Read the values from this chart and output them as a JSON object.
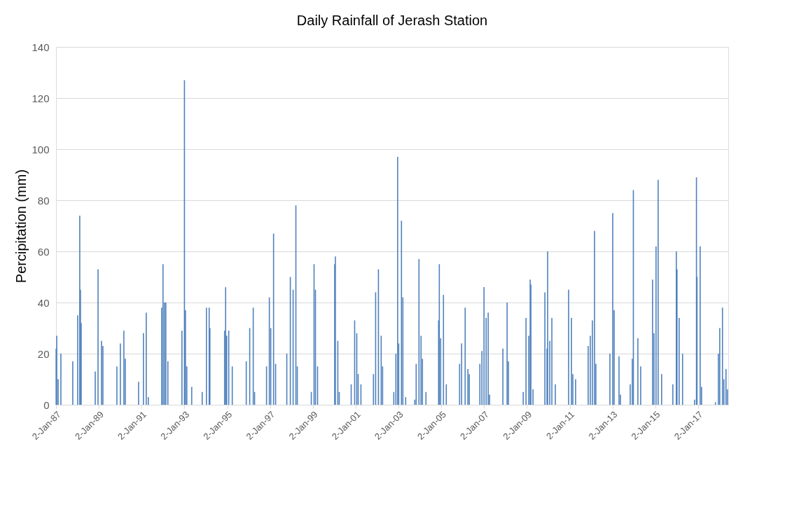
{
  "chart_data": {
    "type": "bar",
    "title": "Daily Rainfall  of Jerash Station",
    "ylabel": "Percipitation (mm)",
    "x": [
      "1987-01-03",
      "1987-01-13",
      "1987-02-06",
      "1987-03-25",
      "1987-10-14",
      "1988-01-06",
      "1988-02-10",
      "1988-02-22",
      "1988-03-05",
      "1988-10-31",
      "1988-12-18",
      "1989-02-15",
      "1989-03-11",
      "1989-11-05",
      "1990-01-03",
      "1990-03-04",
      "1990-03-28",
      "1990-11-10",
      "1991-02-01",
      "1991-03-21",
      "1991-04-25",
      "1991-12-08",
      "1992-01-01",
      "1992-01-25",
      "1992-02-18",
      "1992-03-24",
      "1992-11-19",
      "1993-01-01",
      "1993-01-18",
      "1993-02-10",
      "1993-05-05",
      "1993-10-31",
      "1994-01-11",
      "1994-02-27",
      "1994-03-11",
      "1994-11-17",
      "1994-12-05",
      "1994-12-22",
      "1995-01-27",
      "1995-03-28",
      "1995-11-22",
      "1996-01-20",
      "1996-03-20",
      "1996-04-12",
      "1996-11-02",
      "1996-12-20",
      "1997-01-13",
      "1997-03-02",
      "1997-04-06",
      "1997-10-14",
      "1997-12-13",
      "1998-01-30",
      "1998-03-18",
      "1998-04-11",
      "1998-12-06",
      "1999-01-22",
      "1999-02-15",
      "1999-03-23",
      "2000-01-09",
      "2000-01-21",
      "2000-03-03",
      "2000-03-27",
      "2000-10-17",
      "2000-12-15",
      "2001-01-20",
      "2001-02-13",
      "2001-04-01",
      "2001-11-01",
      "2001-12-08",
      "2002-01-25",
      "2002-03-13",
      "2002-04-06",
      "2002-10-14",
      "2002-11-19",
      "2002-12-19",
      "2003-01-06",
      "2003-02-22",
      "2003-03-18",
      "2003-05-05",
      "2003-10-07",
      "2003-10-31",
      "2003-12-18",
      "2004-01-22",
      "2004-02-15",
      "2004-04-15",
      "2004-11-17",
      "2004-11-29",
      "2004-12-22",
      "2005-02-08",
      "2005-03-28",
      "2005-11-10",
      "2005-12-15",
      "2006-02-13",
      "2006-04-01",
      "2006-04-25",
      "2006-10-22",
      "2006-11-26",
      "2007-01-01",
      "2007-02-06",
      "2007-03-13",
      "2007-04-06",
      "2007-11-19",
      "2008-01-30",
      "2008-02-22",
      "2008-10-31",
      "2008-12-18",
      "2009-02-03",
      "2009-02-27",
      "2009-03-11",
      "2009-04-16",
      "2009-11-05",
      "2009-12-11",
      "2009-12-22",
      "2010-01-27",
      "2010-03-04",
      "2010-05-02",
      "2010-12-15",
      "2011-02-01",
      "2011-02-25",
      "2011-04-13",
      "2011-11-14",
      "2011-12-20",
      "2012-01-25",
      "2012-03-01",
      "2012-03-24",
      "2012-11-19",
      "2013-01-06",
      "2013-01-30",
      "2013-04-23",
      "2013-05-17",
      "2013-10-31",
      "2013-12-06",
      "2013-12-24",
      "2014-03-11",
      "2014-04-28",
      "2014-11-17",
      "2014-12-11",
      "2015-01-15",
      "2015-02-20",
      "2015-04-20",
      "2015-10-29",
      "2015-12-27",
      "2016-01-08",
      "2016-02-13",
      "2016-04-12",
      "2016-11-02",
      "2016-12-05",
      "2016-12-14",
      "2017-02-06",
      "2017-03-02",
      "2017-10-25",
      "2017-12-13",
      "2018-01-06",
      "2018-02-22",
      "2018-03-18",
      "2018-04-23",
      "2018-05-17"
    ],
    "series": [
      {
        "color": "#4f81bd",
        "values": [
          22,
          27,
          10,
          20,
          17,
          35,
          74,
          45,
          32,
          13,
          53,
          25,
          23,
          15,
          24,
          29,
          18,
          9,
          28,
          36,
          3,
          38,
          55,
          40,
          40,
          17,
          29,
          127,
          37,
          15,
          7,
          5,
          38,
          38,
          30,
          29,
          46,
          27,
          29,
          15,
          17,
          30,
          38,
          5,
          15,
          42,
          30,
          67,
          16,
          20,
          50,
          45,
          78,
          15,
          5,
          55,
          45,
          15,
          55,
          58,
          25,
          5,
          8,
          33,
          28,
          12,
          8,
          12,
          44,
          53,
          27,
          15,
          5,
          20,
          97,
          24,
          72,
          42,
          3,
          2,
          16,
          57,
          27,
          18,
          5,
          33,
          55,
          26,
          43,
          8,
          16,
          24,
          38,
          14,
          12,
          16,
          21,
          46,
          34,
          36,
          4,
          22,
          40,
          17,
          5,
          34,
          27,
          49,
          47,
          6,
          44,
          22,
          60,
          25,
          34,
          8,
          45,
          34,
          12,
          10,
          23,
          27,
          33,
          68,
          16,
          20,
          75,
          37,
          19,
          4,
          8,
          18,
          84,
          26,
          15,
          49,
          28,
          62,
          88,
          12,
          8,
          60,
          53,
          34,
          20,
          2,
          89,
          50,
          62,
          7,
          1,
          20,
          30,
          38,
          10,
          14,
          6
        ]
      }
    ],
    "xlim": [
      "1987-01-01",
      "2018-06-01"
    ],
    "xticks": [
      {
        "value": "1987-01-02",
        "label": "2-Jan-87"
      },
      {
        "value": "1989-01-02",
        "label": "2-Jan-89"
      },
      {
        "value": "1991-01-02",
        "label": "2-Jan-91"
      },
      {
        "value": "1993-01-02",
        "label": "2-Jan-93"
      },
      {
        "value": "1995-01-02",
        "label": "2-Jan-95"
      },
      {
        "value": "1997-01-02",
        "label": "2-Jan-97"
      },
      {
        "value": "1999-01-02",
        "label": "2-Jan-99"
      },
      {
        "value": "2001-01-02",
        "label": "2-Jan-01"
      },
      {
        "value": "2003-01-02",
        "label": "2-Jan-03"
      },
      {
        "value": "2005-01-02",
        "label": "2-Jan-05"
      },
      {
        "value": "2007-01-02",
        "label": "2-Jan-07"
      },
      {
        "value": "2009-01-02",
        "label": "2-Jan-09"
      },
      {
        "value": "2011-01-02",
        "label": "2-Jan-11"
      },
      {
        "value": "2013-01-02",
        "label": "2-Jan-13"
      },
      {
        "value": "2015-01-02",
        "label": "2-Jan-15"
      },
      {
        "value": "2017-01-02",
        "label": "2-Jan-17"
      }
    ],
    "ylim": [
      0,
      140
    ],
    "yticks": [
      0,
      20,
      40,
      60,
      80,
      100,
      120,
      140
    ],
    "grid": "y"
  }
}
